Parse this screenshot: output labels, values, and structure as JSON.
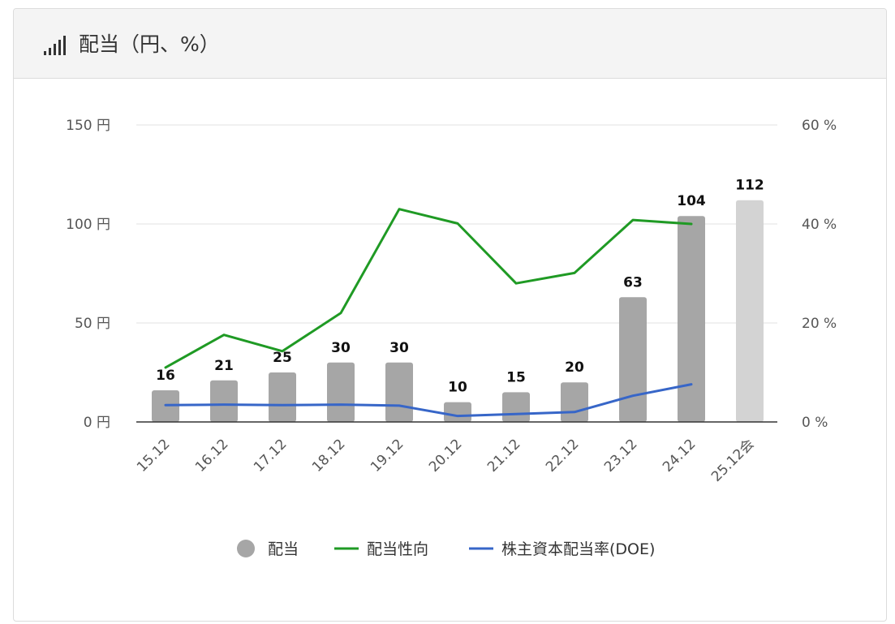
{
  "header": {
    "title": "配当（円、%）",
    "icon": "bar-signal-icon"
  },
  "chart_data": {
    "type": "bar",
    "categories": [
      "15.12",
      "16.12",
      "17.12",
      "18.12",
      "19.12",
      "20.12",
      "21.12",
      "22.12",
      "23.12",
      "24.12",
      "25.12会"
    ],
    "series": [
      {
        "name": "配当",
        "type": "bar",
        "axis": "left",
        "color": "#a6a6a6",
        "forecast_color": "#d3d3d3",
        "values": [
          16,
          21,
          25,
          30,
          30,
          10,
          15,
          20,
          63,
          104,
          112
        ],
        "labels": [
          "16",
          "21",
          "25",
          "30",
          "30",
          "10",
          "15",
          "20",
          "63",
          "104",
          "112"
        ]
      },
      {
        "name": "配当性向",
        "type": "line",
        "axis": "right",
        "color": "#1f9a24",
        "values": [
          11,
          17.6,
          14.3,
          22,
          43,
          40.1,
          28,
          30.1,
          40.8,
          40,
          null
        ]
      },
      {
        "name": "株主資本配当率(DOE)",
        "type": "line",
        "axis": "right",
        "color": "#3766c8",
        "values": [
          3.4,
          3.5,
          3.4,
          3.5,
          3.3,
          1.2,
          1.6,
          2,
          5.3,
          7.6,
          null
        ]
      }
    ],
    "y_left": {
      "min": 0,
      "max": 150,
      "ticks": [
        0,
        50,
        100,
        150
      ],
      "tick_labels": [
        "0 円",
        "50 円",
        "100 円",
        "150 円"
      ]
    },
    "y_right": {
      "min": 0,
      "max": 60,
      "ticks": [
        0,
        20,
        40,
        60
      ],
      "tick_labels": [
        "0 %",
        "20 %",
        "40 %",
        "60 %"
      ]
    },
    "grid": true,
    "legend": "bottom"
  }
}
